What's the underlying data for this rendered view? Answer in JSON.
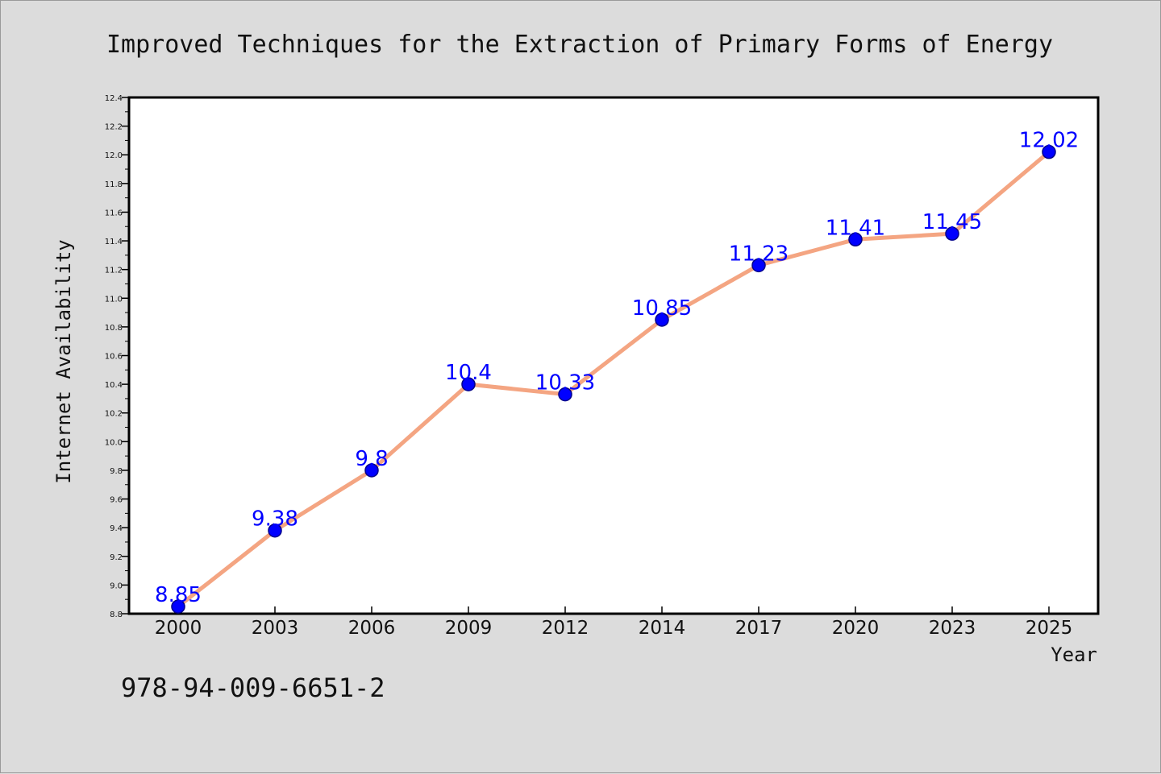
{
  "chart_data": {
    "type": "line",
    "title": "Improved Techniques for the Extraction of Primary Forms of Energy",
    "xlabel": "Year",
    "ylabel": "Internet Availability",
    "categories": [
      "2000",
      "2003",
      "2006",
      "2009",
      "2012",
      "2014",
      "2017",
      "2020",
      "2023",
      "2025"
    ],
    "series": [
      {
        "values": [
          8.85,
          9.38,
          9.8,
          10.4,
          10.33,
          10.85,
          11.23,
          11.41,
          11.45,
          12.02
        ],
        "data_labels": [
          "8.85",
          "9.38",
          "9.8",
          "10.4",
          "10.33",
          "10.85",
          "11.23",
          "11.41",
          "11.45",
          "12.02"
        ]
      }
    ],
    "ylim": [
      8.8,
      12.4
    ],
    "y_ticks": [
      "8.8",
      "9.0",
      "9.2",
      "9.4",
      "9.6",
      "9.8",
      "10.0",
      "10.2",
      "10.4",
      "10.6",
      "10.8",
      "11.0",
      "11.2",
      "11.4",
      "11.6",
      "11.8",
      "12.0",
      "12.2",
      "12.4"
    ],
    "grid": false,
    "legend": "none",
    "colors": {
      "line": "#f4a582",
      "marker": "#0000ff",
      "marker_edge": "#00008b",
      "data_label": "#0000ff",
      "plot_background": "#ffffff",
      "figure_background": "#dcdcdc"
    }
  },
  "footer": {
    "isbn": "978-94-009-6651-2"
  }
}
